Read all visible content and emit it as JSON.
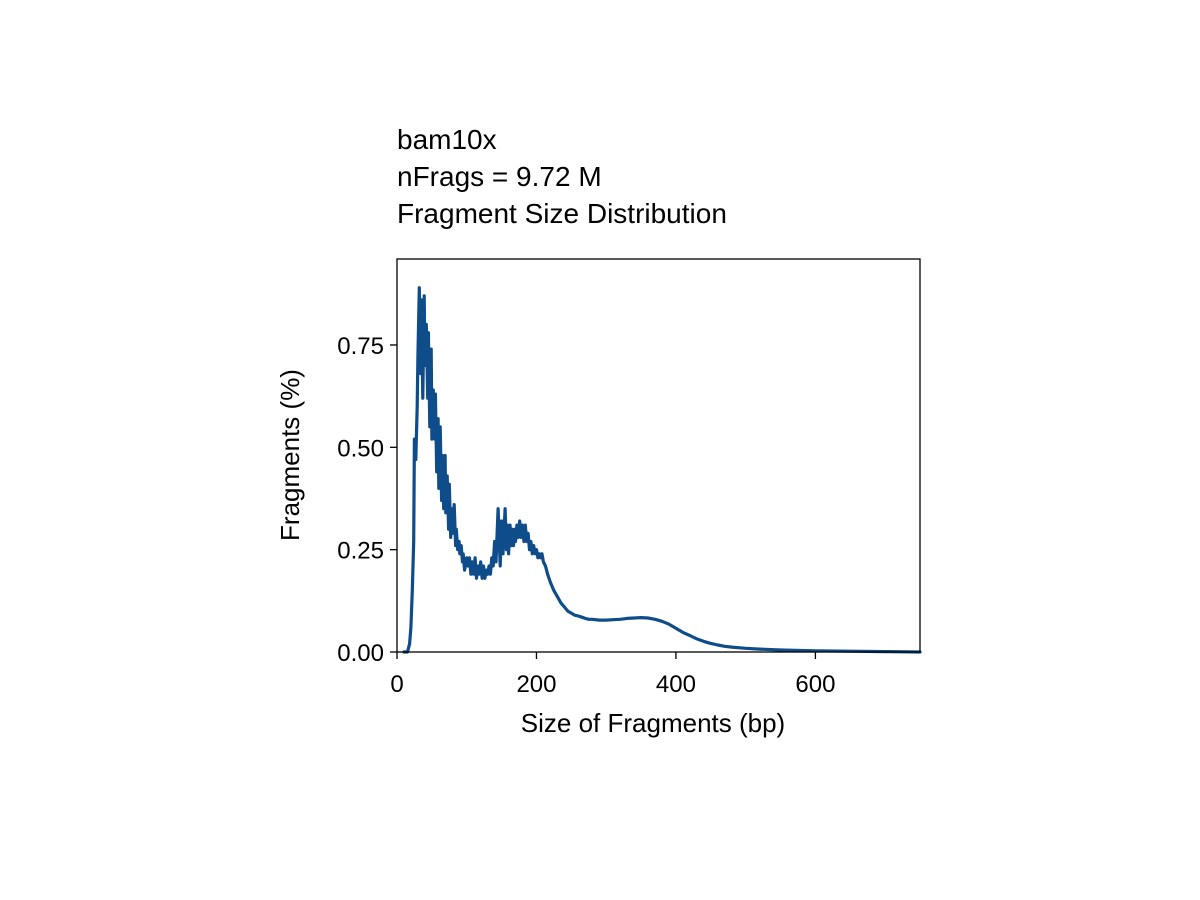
{
  "chart_data": {
    "type": "line",
    "title_lines": [
      "bam10x",
      "nFrags = 9.72 M",
      "Fragment Size Distribution"
    ],
    "xlabel": "Size of Fragments (bp)",
    "ylabel": "Fragments (%)",
    "xlim": [
      0,
      750
    ],
    "ylim": [
      0,
      0.96
    ],
    "x_ticks": [
      0,
      200,
      400,
      600
    ],
    "x_tick_labels": [
      "0",
      "200",
      "400",
      "600"
    ],
    "y_ticks": [
      0,
      0.25,
      0.5,
      0.75
    ],
    "y_tick_labels": [
      "0.00",
      "0.25",
      "0.50",
      "0.75"
    ],
    "grid": false,
    "legend": "none",
    "line_color": "#0f4c8a",
    "series": [
      {
        "x": [
          10,
          15,
          18,
          20,
          22,
          24,
          25,
          27,
          29,
          30,
          32,
          34,
          35,
          37,
          39,
          40,
          42,
          44,
          45,
          47,
          49,
          50,
          52,
          54,
          55,
          57,
          59,
          60,
          62,
          64,
          65,
          67,
          69,
          70,
          72,
          74,
          75,
          77,
          79,
          80,
          82,
          84,
          85,
          87,
          89,
          90,
          92,
          94,
          95,
          97,
          100,
          102,
          104,
          106,
          108,
          110,
          112,
          114,
          116,
          118,
          120,
          122,
          124,
          126,
          128,
          130,
          132,
          134,
          136,
          138,
          140,
          142,
          145,
          148,
          150,
          152,
          155,
          157,
          158,
          160,
          162,
          164,
          165,
          167,
          169,
          170,
          172,
          174,
          176,
          178,
          180,
          182,
          184,
          186,
          188,
          190,
          192,
          194,
          196,
          198,
          200,
          202,
          204,
          206,
          208,
          210,
          213,
          216,
          220,
          225,
          230,
          235,
          240,
          245,
          250,
          255,
          260,
          265,
          270,
          275,
          280,
          290,
          300,
          310,
          320,
          330,
          340,
          350,
          360,
          370,
          380,
          390,
          400,
          410,
          420,
          430,
          440,
          450,
          460,
          470,
          480,
          500,
          520,
          550,
          600,
          650,
          700,
          750
        ],
        "values": [
          0.0,
          0.0,
          0.02,
          0.06,
          0.15,
          0.27,
          0.52,
          0.47,
          0.6,
          0.72,
          0.89,
          0.68,
          0.86,
          0.62,
          0.87,
          0.7,
          0.8,
          0.62,
          0.78,
          0.55,
          0.74,
          0.52,
          0.64,
          0.52,
          0.63,
          0.44,
          0.57,
          0.4,
          0.55,
          0.37,
          0.48,
          0.35,
          0.48,
          0.34,
          0.43,
          0.3,
          0.41,
          0.28,
          0.35,
          0.29,
          0.36,
          0.26,
          0.3,
          0.25,
          0.27,
          0.24,
          0.26,
          0.22,
          0.24,
          0.2,
          0.23,
          0.21,
          0.23,
          0.19,
          0.22,
          0.19,
          0.23,
          0.18,
          0.21,
          0.19,
          0.22,
          0.18,
          0.21,
          0.18,
          0.2,
          0.19,
          0.21,
          0.19,
          0.23,
          0.21,
          0.27,
          0.22,
          0.35,
          0.21,
          0.32,
          0.24,
          0.35,
          0.25,
          0.31,
          0.24,
          0.31,
          0.26,
          0.3,
          0.26,
          0.3,
          0.27,
          0.31,
          0.28,
          0.32,
          0.28,
          0.31,
          0.27,
          0.31,
          0.27,
          0.29,
          0.25,
          0.27,
          0.24,
          0.26,
          0.24,
          0.25,
          0.23,
          0.24,
          0.23,
          0.24,
          0.22,
          0.21,
          0.19,
          0.17,
          0.15,
          0.135,
          0.12,
          0.11,
          0.1,
          0.095,
          0.09,
          0.088,
          0.085,
          0.082,
          0.08,
          0.08,
          0.078,
          0.078,
          0.079,
          0.08,
          0.082,
          0.083,
          0.084,
          0.083,
          0.08,
          0.075,
          0.068,
          0.058,
          0.048,
          0.04,
          0.032,
          0.026,
          0.021,
          0.017,
          0.014,
          0.012,
          0.009,
          0.007,
          0.005,
          0.003,
          0.002,
          0.001,
          0.0
        ]
      }
    ]
  }
}
